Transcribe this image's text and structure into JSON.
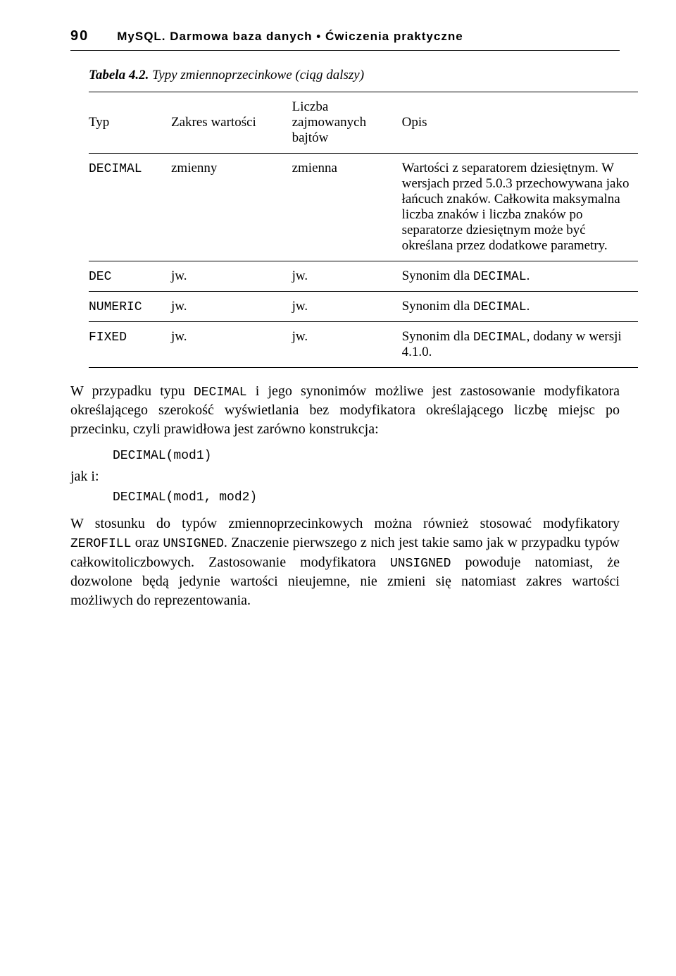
{
  "header": {
    "page_number": "90",
    "running_title": "MySQL. Darmowa baza danych • Ćwiczenia praktyczne"
  },
  "table": {
    "caption_label": "Tabela 4.2.",
    "caption_text": " Typy zmiennoprzecinkowe (ciąg dalszy)",
    "columns": {
      "typ": "Typ",
      "zakres": "Zakres wartości",
      "liczba": "Liczba zajmowanych bajtów",
      "opis": "Opis"
    },
    "rows": [
      {
        "typ": "DECIMAL",
        "zakres": "zmienny",
        "liczba": "zmienna",
        "opis": "Wartości z separatorem dziesiętnym. W wersjach przed 5.0.3 przechowywana jako łańcuch znaków. Całkowita maksymalna liczba znaków i liczba znaków po separatorze dziesiętnym może być określana przez dodatkowe parametry."
      },
      {
        "typ": "DEC",
        "zakres": "jw.",
        "liczba": "jw.",
        "opis_pre": "Synonim dla ",
        "opis_code": "DECIMAL",
        "opis_post": "."
      },
      {
        "typ": "NUMERIC",
        "zakres": "jw.",
        "liczba": "jw.",
        "opis_pre": "Synonim dla ",
        "opis_code": "DECIMAL",
        "opis_post": "."
      },
      {
        "typ": "FIXED",
        "zakres": "jw.",
        "liczba": "jw.",
        "opis_pre": "Synonim dla ",
        "opis_code": "DECIMAL",
        "opis_post": ", dodany w wersji 4.1.0."
      }
    ]
  },
  "para1": {
    "t1": "W przypadku typu ",
    "c1": "DECIMAL",
    "t2": " i jego synonimów możliwe jest zastosowanie modyfikatora określającego szerokość wyświetlania bez modyfikatora określającego liczbę miejsc po przecinku, czyli prawidłowa jest zarówno konstrukcja:"
  },
  "code1": "DECIMAL(mod1)",
  "label_jak_i": "jak i:",
  "code2": "DECIMAL(mod1, mod2)",
  "para2": {
    "t1": "W stosunku do typów zmiennoprzecinkowych można również stosować modyfikatory ",
    "c1": "ZEROFILL",
    "t2": " oraz ",
    "c2": "UNSIGNED",
    "t3": ". Znaczenie pierwszego z nich jest takie samo jak w przypadku typów całkowitoliczbowych. Zastosowanie modyfikatora ",
    "c3": "UNSIGNED",
    "t4": " powoduje natomiast, że dozwolone będą jedynie wartości nieujemne, nie zmieni się natomiast zakres wartości możliwych do reprezentowania."
  }
}
